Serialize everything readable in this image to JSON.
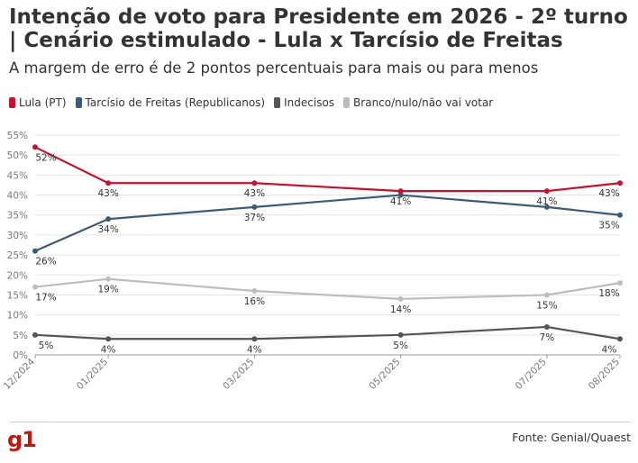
{
  "header": {
    "title": "Intenção de voto para Presidente em 2026 - 2º turno | Cenário estimulado - Lula x Tarcísio de Freitas",
    "subtitle": "A margem de erro é de 2 pontos percentuais para mais ou para menos"
  },
  "footer": {
    "logo": "g1",
    "source": "Fonte: Genial/Quaest"
  },
  "chart_data": {
    "type": "line",
    "title": "Intenção de voto para Presidente em 2026 - 2º turno | Cenário estimulado - Lula x Tarcísio de Freitas",
    "subtitle": "A margem de erro é de 2 pontos percentuais para mais ou para menos",
    "xlabel": "",
    "ylabel": "",
    "x": [
      "12/2024",
      "01/2025",
      "03/2025",
      "05/2025",
      "07/2025",
      "08/2025"
    ],
    "x_months": [
      0,
      1,
      3,
      5,
      7,
      8
    ],
    "ylim": [
      0,
      55
    ],
    "yticks": [
      0,
      5,
      10,
      15,
      20,
      25,
      30,
      35,
      40,
      45,
      50,
      55
    ],
    "ytick_labels": [
      "0%",
      "5%",
      "10%",
      "15%",
      "20%",
      "25%",
      "30%",
      "35%",
      "40%",
      "45%",
      "50%",
      "55%"
    ],
    "grid": true,
    "legend_position": "top-left",
    "series": [
      {
        "name": "Lula (PT)",
        "color": "#c4122f",
        "values": [
          52,
          43,
          43,
          41,
          41,
          43
        ],
        "labels": [
          "52%",
          "43%",
          "43%",
          "41%",
          "41%",
          "43%"
        ]
      },
      {
        "name": "Tarcísio de Freitas (Republicanos)",
        "color": "#3d5a76",
        "values": [
          26,
          34,
          37,
          40,
          37,
          35
        ],
        "labels": [
          "26%",
          "34%",
          "37%",
          "",
          "",
          "35%"
        ]
      },
      {
        "name": "Indecisos",
        "color": "#555555",
        "values": [
          5,
          4,
          4,
          5,
          7,
          4
        ],
        "labels": [
          "5%",
          "4%",
          "4%",
          "5%",
          "7%",
          "4%"
        ]
      },
      {
        "name": "Branco/nulo/não vai votar",
        "color": "#bdbdbd",
        "values": [
          17,
          19,
          16,
          14,
          15,
          18
        ],
        "labels": [
          "17%",
          "19%",
          "16%",
          "14%",
          "15%",
          "18%"
        ]
      }
    ]
  }
}
